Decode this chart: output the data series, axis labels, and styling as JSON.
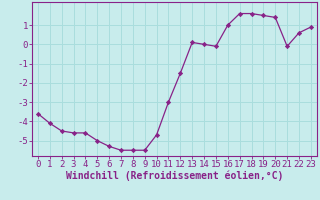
{
  "x": [
    0,
    1,
    2,
    3,
    4,
    5,
    6,
    7,
    8,
    9,
    10,
    11,
    12,
    13,
    14,
    15,
    16,
    17,
    18,
    19,
    20,
    21,
    22,
    23
  ],
  "y": [
    -3.6,
    -4.1,
    -4.5,
    -4.6,
    -4.6,
    -5.0,
    -5.3,
    -5.5,
    -5.5,
    -5.5,
    -4.7,
    -3.0,
    -1.5,
    0.1,
    0.0,
    -0.1,
    1.0,
    1.6,
    1.6,
    1.5,
    1.4,
    -0.1,
    0.6,
    0.9
  ],
  "line_color": "#882288",
  "marker": "D",
  "marker_size": 2.2,
  "xlabel": "Windchill (Refroidissement éolien,°C)",
  "ylabel": "",
  "xlim": [
    -0.5,
    23.5
  ],
  "ylim": [
    -5.8,
    2.2
  ],
  "yticks": [
    1,
    0,
    -1,
    -2,
    -3,
    -4,
    -5
  ],
  "xticks": [
    0,
    1,
    2,
    3,
    4,
    5,
    6,
    7,
    8,
    9,
    10,
    11,
    12,
    13,
    14,
    15,
    16,
    17,
    18,
    19,
    20,
    21,
    22,
    23
  ],
  "bg_color": "#c8ecec",
  "grid_color": "#aadddd",
  "axis_color": "#882288",
  "label_color": "#882288",
  "font_size": 6.5,
  "xlabel_fontsize": 7.0,
  "linewidth": 0.9
}
